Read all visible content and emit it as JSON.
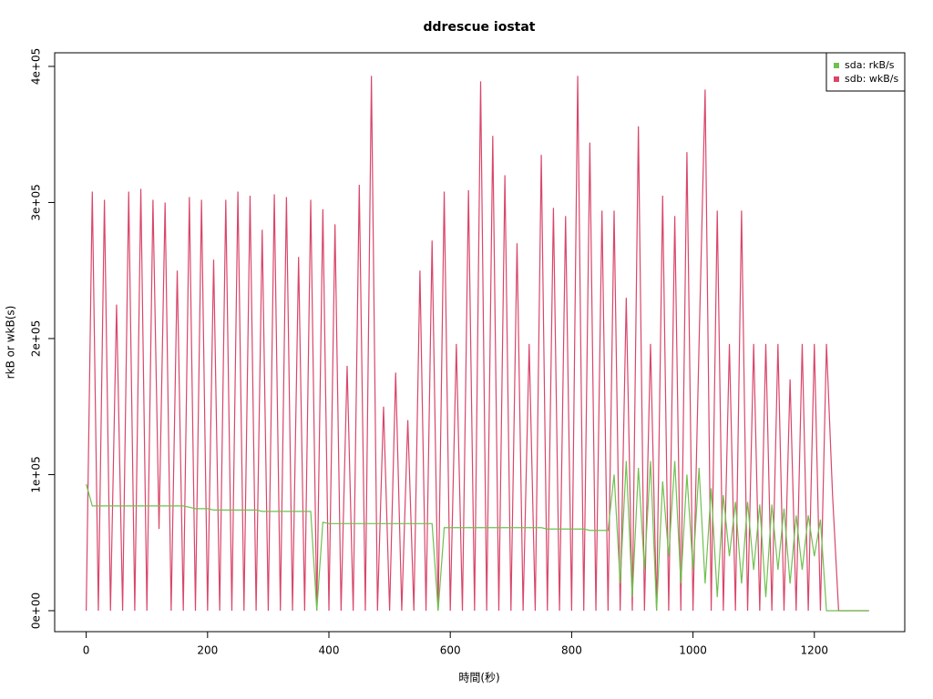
{
  "chart_data": {
    "type": "line",
    "title": "ddrescue iostat",
    "xlabel": "時間(秒)",
    "ylabel": "rkB or wkB(s)",
    "x": [
      0,
      10,
      20,
      30,
      40,
      50,
      60,
      70,
      80,
      90,
      100,
      110,
      120,
      130,
      140,
      150,
      160,
      170,
      180,
      190,
      200,
      210,
      220,
      230,
      240,
      250,
      260,
      270,
      280,
      290,
      300,
      310,
      320,
      330,
      340,
      350,
      360,
      370,
      380,
      390,
      400,
      410,
      420,
      430,
      440,
      450,
      460,
      470,
      480,
      490,
      500,
      510,
      520,
      530,
      540,
      550,
      560,
      570,
      580,
      590,
      600,
      610,
      620,
      630,
      640,
      650,
      660,
      670,
      680,
      690,
      700,
      710,
      720,
      730,
      740,
      750,
      760,
      770,
      780,
      790,
      800,
      810,
      820,
      830,
      840,
      850,
      860,
      870,
      880,
      890,
      900,
      910,
      920,
      930,
      940,
      950,
      960,
      970,
      980,
      990,
      1000,
      1010,
      1020,
      1030,
      1040,
      1050,
      1060,
      1070,
      1080,
      1090,
      1100,
      1110,
      1120,
      1130,
      1140,
      1150,
      1160,
      1170,
      1180,
      1190,
      1200,
      1210,
      1220,
      1230,
      1240,
      1250,
      1260,
      1270,
      1280,
      1290
    ],
    "series": [
      {
        "name": "sdb: wkB/s",
        "color": "#d9466a",
        "values": [
          0,
          308000,
          0,
          302000,
          0,
          225000,
          0,
          308000,
          0,
          310000,
          0,
          302000,
          60000,
          300000,
          0,
          250000,
          0,
          304000,
          0,
          302000,
          0,
          258000,
          0,
          302000,
          0,
          308000,
          0,
          305000,
          0,
          280000,
          0,
          306000,
          0,
          304000,
          0,
          260000,
          0,
          302000,
          0,
          295000,
          0,
          284000,
          0,
          180000,
          0,
          313000,
          0,
          393000,
          0,
          150000,
          0,
          175000,
          0,
          140000,
          0,
          250000,
          0,
          272000,
          0,
          308000,
          0,
          196000,
          0,
          309000,
          0,
          389000,
          0,
          349000,
          0,
          320000,
          0,
          270000,
          0,
          196000,
          0,
          335000,
          0,
          296000,
          0,
          290000,
          0,
          393000,
          0,
          344000,
          0,
          294000,
          0,
          294000,
          0,
          230000,
          0,
          356000,
          0,
          196000,
          0,
          305000,
          0,
          290000,
          0,
          337000,
          0,
          196000,
          383000,
          0,
          294000,
          0,
          196000,
          0,
          294000,
          0,
          196000,
          0,
          196000,
          0,
          196000,
          0,
          170000,
          0,
          196000,
          0,
          196000,
          0,
          196000,
          85000,
          0,
          0,
          0,
          0,
          0,
          0
        ]
      },
      {
        "name": "sda: rkB/s",
        "color": "#6fc04f",
        "values": [
          93000,
          77000,
          77000,
          77000,
          77000,
          77000,
          77000,
          77000,
          77000,
          77000,
          77000,
          77000,
          77000,
          77000,
          77000,
          77000,
          77000,
          76000,
          75000,
          75000,
          75000,
          74000,
          74000,
          74000,
          74000,
          74000,
          74000,
          74000,
          74000,
          73000,
          73000,
          73000,
          73000,
          73000,
          73000,
          73000,
          73000,
          73000,
          0,
          65000,
          64000,
          64000,
          64000,
          64000,
          64000,
          64000,
          64000,
          64000,
          64000,
          64000,
          64000,
          64000,
          64000,
          64000,
          64000,
          64000,
          64000,
          64000,
          0,
          61000,
          61000,
          61000,
          61000,
          61000,
          61000,
          61000,
          61000,
          61000,
          61000,
          61000,
          61000,
          61000,
          61000,
          61000,
          61000,
          61000,
          60000,
          60000,
          60000,
          60000,
          60000,
          60000,
          60000,
          59000,
          59000,
          59000,
          59000,
          100000,
          20000,
          110000,
          10000,
          105000,
          30000,
          110000,
          0,
          95000,
          40000,
          110000,
          20000,
          100000,
          30000,
          105000,
          20000,
          90000,
          10000,
          85000,
          40000,
          80000,
          20000,
          80000,
          30000,
          78000,
          10000,
          78000,
          30000,
          75000,
          20000,
          70000,
          30000,
          70000,
          40000,
          67000,
          0,
          0,
          0,
          0,
          0,
          0,
          0,
          0
        ]
      }
    ],
    "legend_order": [
      1,
      0
    ],
    "xlim": [
      -52,
      1349
    ],
    "ylim": [
      -15400,
      410000
    ],
    "xticks": [
      0,
      200,
      400,
      600,
      800,
      1000,
      1200
    ],
    "yticks": [
      {
        "value": 0,
        "label": "0e+00"
      },
      {
        "value": 100000,
        "label": "1e+05"
      },
      {
        "value": 200000,
        "label": "2e+05"
      },
      {
        "value": 300000,
        "label": "3e+05"
      },
      {
        "value": 400000,
        "label": "4e+05"
      }
    ],
    "legend": "top-right"
  }
}
